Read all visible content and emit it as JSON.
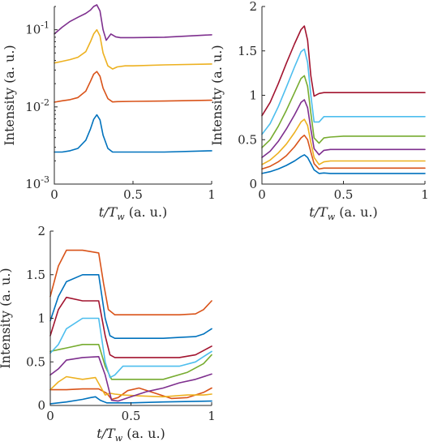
{
  "chart_data": [
    {
      "type": "line",
      "yscale": "log",
      "xlabel_var": "t",
      "xlabel_sub": "T",
      "xlabel_subsub": "w",
      "xlabel_unit": "(a. u.)",
      "ylabel": "Intensity (a. u.)",
      "xlim": [
        0,
        1
      ],
      "ylim": [
        0.001,
        0.2
      ],
      "xticks": [
        {
          "value": 0,
          "label": "0"
        },
        {
          "value": 0.5,
          "label": "0.5"
        },
        {
          "value": 1,
          "label": "1"
        }
      ],
      "yticks": [
        {
          "value": 0.001,
          "base": "10",
          "exp": "-3"
        },
        {
          "value": 0.01,
          "base": "10",
          "exp": "-2"
        },
        {
          "value": 0.1,
          "base": "10",
          "exp": "-1"
        }
      ],
      "series": [
        {
          "color": "#0072BD",
          "x": [
            0,
            0.05,
            0.1,
            0.15,
            0.2,
            0.23,
            0.25,
            0.27,
            0.29,
            0.31,
            0.34,
            0.37,
            0.4,
            0.5,
            0.7,
            1.0
          ],
          "y": [
            0.0026,
            0.0026,
            0.0027,
            0.0029,
            0.0037,
            0.0052,
            0.0069,
            0.0079,
            0.0068,
            0.0043,
            0.0029,
            0.0026,
            0.0026,
            0.0026,
            0.0026,
            0.0027
          ]
        },
        {
          "color": "#D95319",
          "x": [
            0,
            0.05,
            0.1,
            0.15,
            0.2,
            0.23,
            0.25,
            0.27,
            0.29,
            0.31,
            0.34,
            0.37,
            0.4,
            0.5,
            0.7,
            1.0
          ],
          "y": [
            0.0115,
            0.012,
            0.0124,
            0.0132,
            0.016,
            0.0215,
            0.0265,
            0.0287,
            0.025,
            0.0175,
            0.0128,
            0.0116,
            0.0117,
            0.0118,
            0.0119,
            0.0122
          ]
        },
        {
          "color": "#EDB120",
          "x": [
            0,
            0.05,
            0.1,
            0.15,
            0.2,
            0.23,
            0.25,
            0.27,
            0.29,
            0.31,
            0.34,
            0.37,
            0.4,
            0.45,
            0.5,
            0.7,
            1.0
          ],
          "y": [
            0.037,
            0.039,
            0.041,
            0.044,
            0.052,
            0.07,
            0.088,
            0.1,
            0.083,
            0.05,
            0.034,
            0.031,
            0.033,
            0.034,
            0.034,
            0.035,
            0.036
          ]
        },
        {
          "color": "#7E2F8E",
          "x": [
            0,
            0.05,
            0.1,
            0.15,
            0.2,
            0.23,
            0.25,
            0.27,
            0.29,
            0.31,
            0.33,
            0.36,
            0.39,
            0.42,
            0.45,
            0.5,
            0.7,
            1.0
          ],
          "y": [
            0.088,
            0.108,
            0.128,
            0.145,
            0.163,
            0.18,
            0.2,
            0.21,
            0.175,
            0.1,
            0.073,
            0.088,
            0.081,
            0.079,
            0.079,
            0.079,
            0.08,
            0.086
          ]
        }
      ]
    },
    {
      "type": "line",
      "xlabel_var": "t",
      "xlabel_sub": "T",
      "xlabel_subsub": "w",
      "xlabel_unit": "(a. u.)",
      "ylabel": "Intensity (a. u.)",
      "xlim": [
        0,
        1
      ],
      "ylim": [
        0,
        2
      ],
      "xticks": [
        {
          "value": 0,
          "label": "0"
        },
        {
          "value": 0.5,
          "label": "0.5"
        },
        {
          "value": 1,
          "label": "1"
        }
      ],
      "yticks": [
        {
          "value": 0,
          "label": "0"
        },
        {
          "value": 0.5,
          "label": "0.5"
        },
        {
          "value": 1,
          "label": "1"
        },
        {
          "value": 1.5,
          "label": "1.5"
        },
        {
          "value": 2,
          "label": "2"
        }
      ],
      "series": [
        {
          "color": "#0072BD",
          "x": [
            0,
            0.05,
            0.1,
            0.15,
            0.2,
            0.24,
            0.26,
            0.28,
            0.3,
            0.32,
            0.35,
            0.38,
            0.42,
            0.5,
            0.7,
            1.0
          ],
          "y": [
            0.12,
            0.14,
            0.17,
            0.21,
            0.26,
            0.31,
            0.33,
            0.3,
            0.23,
            0.16,
            0.12,
            0.125,
            0.12,
            0.12,
            0.12,
            0.12
          ]
        },
        {
          "color": "#D95319",
          "x": [
            0,
            0.05,
            0.1,
            0.15,
            0.2,
            0.24,
            0.26,
            0.28,
            0.3,
            0.32,
            0.35,
            0.38,
            0.42,
            0.5,
            0.7,
            1.0
          ],
          "y": [
            0.17,
            0.2,
            0.25,
            0.32,
            0.42,
            0.52,
            0.55,
            0.5,
            0.36,
            0.23,
            0.17,
            0.18,
            0.18,
            0.18,
            0.18,
            0.18
          ]
        },
        {
          "color": "#EDB120",
          "x": [
            0,
            0.05,
            0.1,
            0.15,
            0.2,
            0.24,
            0.26,
            0.28,
            0.3,
            0.32,
            0.35,
            0.38,
            0.42,
            0.5,
            0.7,
            1.0
          ],
          "y": [
            0.22,
            0.27,
            0.35,
            0.45,
            0.58,
            0.7,
            0.73,
            0.66,
            0.47,
            0.3,
            0.22,
            0.25,
            0.26,
            0.26,
            0.26,
            0.26
          ]
        },
        {
          "color": "#7E2F8E",
          "x": [
            0,
            0.05,
            0.1,
            0.15,
            0.2,
            0.24,
            0.26,
            0.28,
            0.3,
            0.32,
            0.35,
            0.38,
            0.42,
            0.5,
            0.7,
            1.0
          ],
          "y": [
            0.3,
            0.37,
            0.48,
            0.62,
            0.78,
            0.92,
            0.95,
            0.86,
            0.62,
            0.4,
            0.33,
            0.38,
            0.39,
            0.39,
            0.39,
            0.39
          ]
        },
        {
          "color": "#77AC30",
          "x": [
            0,
            0.05,
            0.1,
            0.15,
            0.2,
            0.24,
            0.26,
            0.28,
            0.3,
            0.32,
            0.35,
            0.38,
            0.42,
            0.5,
            0.7,
            1.0
          ],
          "y": [
            0.41,
            0.5,
            0.65,
            0.83,
            1.03,
            1.19,
            1.22,
            1.1,
            0.8,
            0.52,
            0.46,
            0.52,
            0.53,
            0.54,
            0.54,
            0.54
          ]
        },
        {
          "color": "#4DBEEE",
          "x": [
            0,
            0.05,
            0.1,
            0.15,
            0.2,
            0.24,
            0.26,
            0.28,
            0.3,
            0.32,
            0.35,
            0.38,
            0.42,
            0.5,
            0.7,
            1.0
          ],
          "y": [
            0.56,
            0.68,
            0.87,
            1.09,
            1.32,
            1.49,
            1.52,
            1.37,
            1.0,
            0.7,
            0.7,
            0.76,
            0.76,
            0.76,
            0.76,
            0.76
          ]
        },
        {
          "color": "#A2142F",
          "x": [
            0,
            0.05,
            0.1,
            0.15,
            0.2,
            0.24,
            0.26,
            0.28,
            0.3,
            0.32,
            0.35,
            0.38,
            0.42,
            0.5,
            0.7,
            1.0
          ],
          "y": [
            0.77,
            0.92,
            1.13,
            1.36,
            1.58,
            1.74,
            1.78,
            1.62,
            1.22,
            0.99,
            1.02,
            1.03,
            1.03,
            1.03,
            1.03,
            1.03
          ]
        }
      ]
    },
    {
      "type": "line",
      "xlabel_var": "t",
      "xlabel_sub": "T",
      "xlabel_subsub": "w",
      "xlabel_unit": "(a. u.)",
      "ylabel": "Intensity (a. u.)",
      "xlim": [
        0,
        1
      ],
      "ylim": [
        0,
        2
      ],
      "xticks": [
        {
          "value": 0,
          "label": "0"
        },
        {
          "value": 0.5,
          "label": "0.5"
        },
        {
          "value": 1,
          "label": "1"
        }
      ],
      "yticks": [
        {
          "value": 0,
          "label": "0"
        },
        {
          "value": 0.5,
          "label": "0.5"
        },
        {
          "value": 1,
          "label": "1"
        },
        {
          "value": 1.5,
          "label": "1.5"
        },
        {
          "value": 2,
          "label": "2"
        }
      ],
      "series": [
        {
          "color": "#0072BD",
          "x": [
            0,
            0.1,
            0.2,
            0.25,
            0.28,
            0.31,
            0.35,
            0.4,
            0.5,
            0.7,
            1.0
          ],
          "y": [
            0.02,
            0.04,
            0.07,
            0.09,
            0.1,
            0.06,
            0.03,
            0.03,
            0.03,
            0.04,
            0.05
          ]
        },
        {
          "color": "#D95319",
          "x": [
            0,
            0.1,
            0.2,
            0.3,
            0.35,
            0.38,
            0.42,
            0.48,
            0.55,
            0.65,
            0.75,
            0.85,
            0.95,
            1.0
          ],
          "y": [
            0.18,
            0.18,
            0.19,
            0.19,
            0.14,
            0.07,
            0.09,
            0.17,
            0.2,
            0.14,
            0.08,
            0.09,
            0.15,
            0.2
          ]
        },
        {
          "color": "#EDB120",
          "x": [
            0,
            0.05,
            0.1,
            0.2,
            0.28,
            0.31,
            0.34,
            0.37,
            0.4,
            0.45,
            0.55,
            0.7,
            0.85,
            0.95,
            1.0
          ],
          "y": [
            0.18,
            0.27,
            0.33,
            0.3,
            0.32,
            0.22,
            0.12,
            0.14,
            0.13,
            0.12,
            0.11,
            0.1,
            0.12,
            0.12,
            0.13
          ]
        },
        {
          "color": "#7E2F8E",
          "x": [
            0,
            0.05,
            0.1,
            0.2,
            0.3,
            0.34,
            0.38,
            0.42,
            0.5,
            0.6,
            0.7,
            0.8,
            0.9,
            1.0
          ],
          "y": [
            0.35,
            0.42,
            0.52,
            0.55,
            0.56,
            0.35,
            0.06,
            0.05,
            0.1,
            0.16,
            0.2,
            0.26,
            0.3,
            0.36
          ]
        },
        {
          "color": "#77AC30",
          "x": [
            0,
            0.05,
            0.1,
            0.2,
            0.3,
            0.34,
            0.38,
            0.42,
            0.5,
            0.7,
            0.85,
            0.95,
            1.0
          ],
          "y": [
            0.62,
            0.64,
            0.66,
            0.7,
            0.7,
            0.45,
            0.3,
            0.3,
            0.3,
            0.3,
            0.38,
            0.48,
            0.58
          ]
        },
        {
          "color": "#4DBEEE",
          "x": [
            0,
            0.05,
            0.1,
            0.2,
            0.3,
            0.34,
            0.37,
            0.4,
            0.45,
            0.6,
            0.8,
            0.9,
            0.95,
            1.0
          ],
          "y": [
            0.6,
            0.7,
            0.88,
            1.0,
            1.0,
            0.5,
            0.32,
            0.35,
            0.45,
            0.45,
            0.45,
            0.5,
            0.56,
            0.62
          ]
        },
        {
          "color": "#A2142F",
          "x": [
            0,
            0.05,
            0.1,
            0.2,
            0.3,
            0.34,
            0.37,
            0.4,
            0.45,
            0.6,
            0.8,
            0.9,
            0.95,
            1.0
          ],
          "y": [
            0.8,
            1.1,
            1.24,
            1.2,
            1.2,
            0.8,
            0.58,
            0.55,
            0.55,
            0.55,
            0.55,
            0.58,
            0.63,
            0.68
          ]
        },
        {
          "color": "#0072BD",
          "x": [
            0,
            0.05,
            0.1,
            0.2,
            0.3,
            0.34,
            0.37,
            0.4,
            0.5,
            0.6,
            0.7,
            0.8,
            0.9,
            0.95,
            1.0
          ],
          "y": [
            0.97,
            1.25,
            1.42,
            1.5,
            1.5,
            1.0,
            0.8,
            0.77,
            0.77,
            0.77,
            0.77,
            0.78,
            0.79,
            0.82,
            0.88
          ]
        },
        {
          "color": "#D95319",
          "x": [
            0,
            0.05,
            0.1,
            0.2,
            0.3,
            0.33,
            0.36,
            0.4,
            0.5,
            0.6,
            0.7,
            0.8,
            0.9,
            0.95,
            1.0
          ],
          "y": [
            1.25,
            1.6,
            1.78,
            1.78,
            1.75,
            1.4,
            1.1,
            1.04,
            1.04,
            1.04,
            1.04,
            1.04,
            1.05,
            1.1,
            1.2
          ]
        }
      ]
    }
  ]
}
